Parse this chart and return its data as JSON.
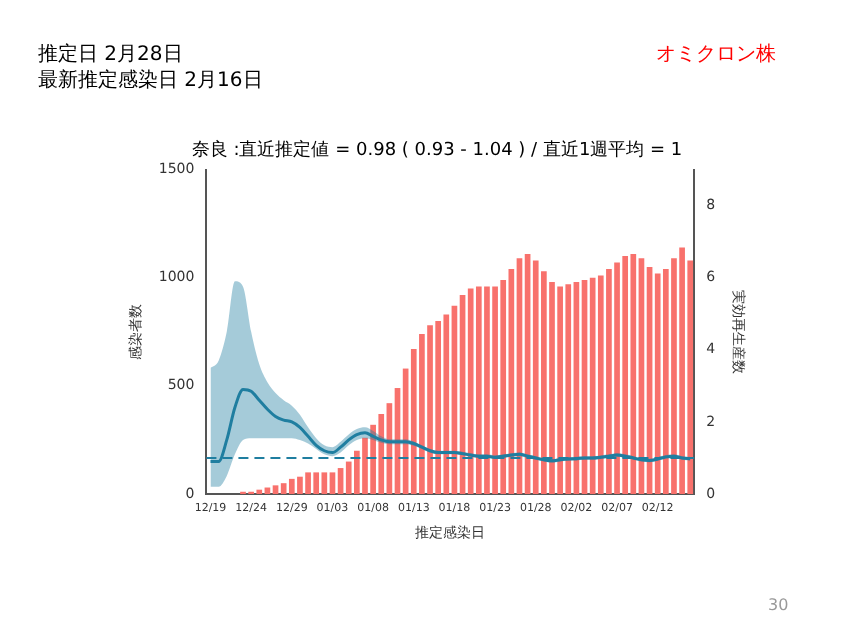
{
  "chart_data": {
    "type": "bar",
    "title": "奈良 :直近推定値 = 0.98 ( 0.93 - 1.04 ) / 直近1週平均 = 1",
    "xlabel": "推定感染日",
    "ylabel": "感染者数",
    "y2label": "実効再生産数",
    "annotations": [
      "推定日  2月28日",
      "最新推定感染日  2月16日",
      "オミクロン株",
      "30"
    ],
    "categories": [
      "12/19",
      null,
      null,
      null,
      null,
      "12/24",
      null,
      null,
      null,
      null,
      "12/29",
      null,
      null,
      null,
      null,
      "01/03",
      null,
      null,
      null,
      null,
      "01/08",
      null,
      null,
      null,
      null,
      "01/13",
      null,
      null,
      null,
      null,
      "01/18",
      null,
      null,
      null,
      null,
      "01/23",
      null,
      null,
      null,
      null,
      "01/28",
      null,
      null,
      null,
      null,
      "02/02",
      null,
      null,
      null,
      null,
      "02/07",
      null,
      null,
      null,
      null,
      "02/12",
      null,
      null,
      null,
      null
    ],
    "series": [
      {
        "color": "#f8716c",
        "values": [
          0,
          0,
          0,
          0,
          10,
          10,
          20,
          30,
          40,
          50,
          70,
          80,
          100,
          100,
          100,
          100,
          120,
          150,
          200,
          260,
          320,
          370,
          420,
          490,
          580,
          670,
          740,
          780,
          800,
          830,
          870,
          920,
          950,
          960,
          960,
          960,
          990,
          1040,
          1090,
          1110,
          1080,
          1030,
          980,
          960,
          970,
          980,
          990,
          1000,
          1010,
          1040,
          1070,
          1100,
          1110,
          1090,
          1050,
          1020,
          1040,
          1090,
          1140,
          1080
        ]
      },
      {
        "type": "line",
        "axis": "y2",
        "color": "#1f7ea0",
        "values": [
          0.9,
          0.9,
          1.5,
          2.4,
          2.9,
          2.85,
          2.6,
          2.35,
          2.15,
          2.05,
          2.0,
          1.85,
          1.6,
          1.35,
          1.2,
          1.15,
          1.3,
          1.5,
          1.65,
          1.7,
          1.6,
          1.5,
          1.45,
          1.45,
          1.45,
          1.4,
          1.3,
          1.2,
          1.15,
          1.15,
          1.15,
          1.12,
          1.08,
          1.05,
          1.05,
          1.02,
          1.05,
          1.08,
          1.1,
          1.05,
          1.0,
          0.95,
          0.92,
          0.95,
          0.97,
          0.98,
          1.0,
          1.0,
          1.02,
          1.05,
          1.08,
          1.05,
          1.0,
          0.95,
          0.93,
          0.97,
          1.03,
          1.05,
          1.0,
          0.98
        ],
        "lower": [
          0.2,
          0.2,
          0.5,
          1.1,
          1.5,
          1.55,
          1.55,
          1.55,
          1.55,
          1.55,
          1.55,
          1.5,
          1.4,
          1.25,
          1.1,
          1.05,
          1.15,
          1.35,
          1.5,
          1.55,
          1.5,
          1.42,
          1.38,
          1.38,
          1.38,
          1.34,
          1.25,
          1.15,
          1.1,
          1.1,
          1.1,
          1.07,
          1.03,
          1.0,
          1.0,
          0.97,
          1.0,
          1.03,
          1.05,
          1.0,
          0.95,
          0.9,
          0.87,
          0.9,
          0.92,
          0.93,
          0.95,
          0.95,
          0.97,
          1.0,
          1.03,
          1.0,
          0.95,
          0.9,
          0.88,
          0.92,
          0.98,
          1.0,
          0.95,
          0.93
        ],
        "upper": [
          3.5,
          3.7,
          4.5,
          5.9,
          5.75,
          4.5,
          3.6,
          3.1,
          2.8,
          2.6,
          2.45,
          2.2,
          1.85,
          1.55,
          1.35,
          1.3,
          1.45,
          1.65,
          1.8,
          1.85,
          1.75,
          1.6,
          1.52,
          1.52,
          1.52,
          1.46,
          1.35,
          1.25,
          1.2,
          1.2,
          1.2,
          1.17,
          1.13,
          1.1,
          1.1,
          1.07,
          1.1,
          1.13,
          1.15,
          1.1,
          1.05,
          1.0,
          0.97,
          1.0,
          1.02,
          1.03,
          1.05,
          1.05,
          1.07,
          1.1,
          1.13,
          1.1,
          1.05,
          1.0,
          0.98,
          1.02,
          1.08,
          1.1,
          1.05,
          1.03
        ]
      }
    ],
    "ylim": [
      0,
      1500
    ],
    "yticks": [
      0,
      500,
      1000,
      1500
    ],
    "y2lim": [
      0,
      9
    ],
    "y2ticks": [
      0,
      2,
      4,
      6,
      8
    ],
    "ref_lines": [
      {
        "axis": "y2",
        "value": 1,
        "color": "#1f7ea0",
        "line_style": "dashed"
      }
    ],
    "grid": false,
    "legend": false
  }
}
